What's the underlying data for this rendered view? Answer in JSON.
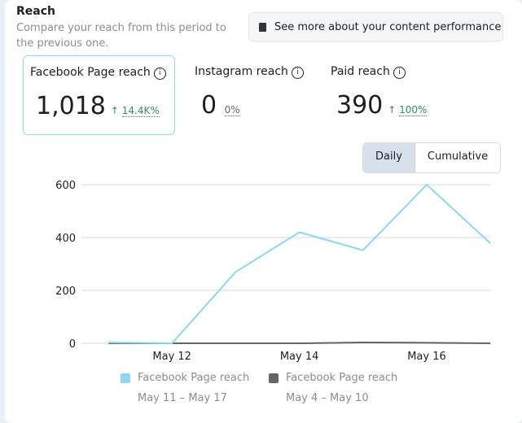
{
  "header": {
    "title": "Reach",
    "subtitle": "Compare your reach from this period to the previous one.",
    "see_more": "See more about your content performance"
  },
  "metrics": [
    {
      "label": "Facebook Page reach",
      "value": "1,018",
      "arrow": "↑",
      "delta": "14.4K%"
    },
    {
      "label": "Instagram reach",
      "value": "0",
      "delta": "0%"
    },
    {
      "label": "Paid reach",
      "value": "390",
      "arrow": "↑",
      "delta": "100%"
    }
  ],
  "toggle": {
    "daily": "Daily",
    "cumulative": "Cumulative"
  },
  "colors": {
    "current": "#8fd6f3",
    "previous": "#5f6769",
    "positive": "#3a8a5c"
  },
  "chart_data": {
    "type": "line",
    "x": [
      "May 11",
      "May 12",
      "May 13",
      "May 14",
      "May 15",
      "May 16",
      "May 17"
    ],
    "x_tick_labels": [
      "May 12",
      "May 14",
      "May 16"
    ],
    "y_ticks": [
      "0",
      "200",
      "400",
      "600"
    ],
    "ylim": [
      0,
      600
    ],
    "grid": true,
    "series": [
      {
        "name": "Facebook Page reach",
        "period": "May 11 – May 17",
        "values": [
          3,
          0,
          270,
          420,
          352,
          600,
          378
        ]
      },
      {
        "name": "Facebook Page reach",
        "period": "May 4 – May 10",
        "values": [
          0,
          0,
          0,
          0,
          3,
          2,
          0
        ]
      }
    ],
    "legend": "bottom"
  }
}
